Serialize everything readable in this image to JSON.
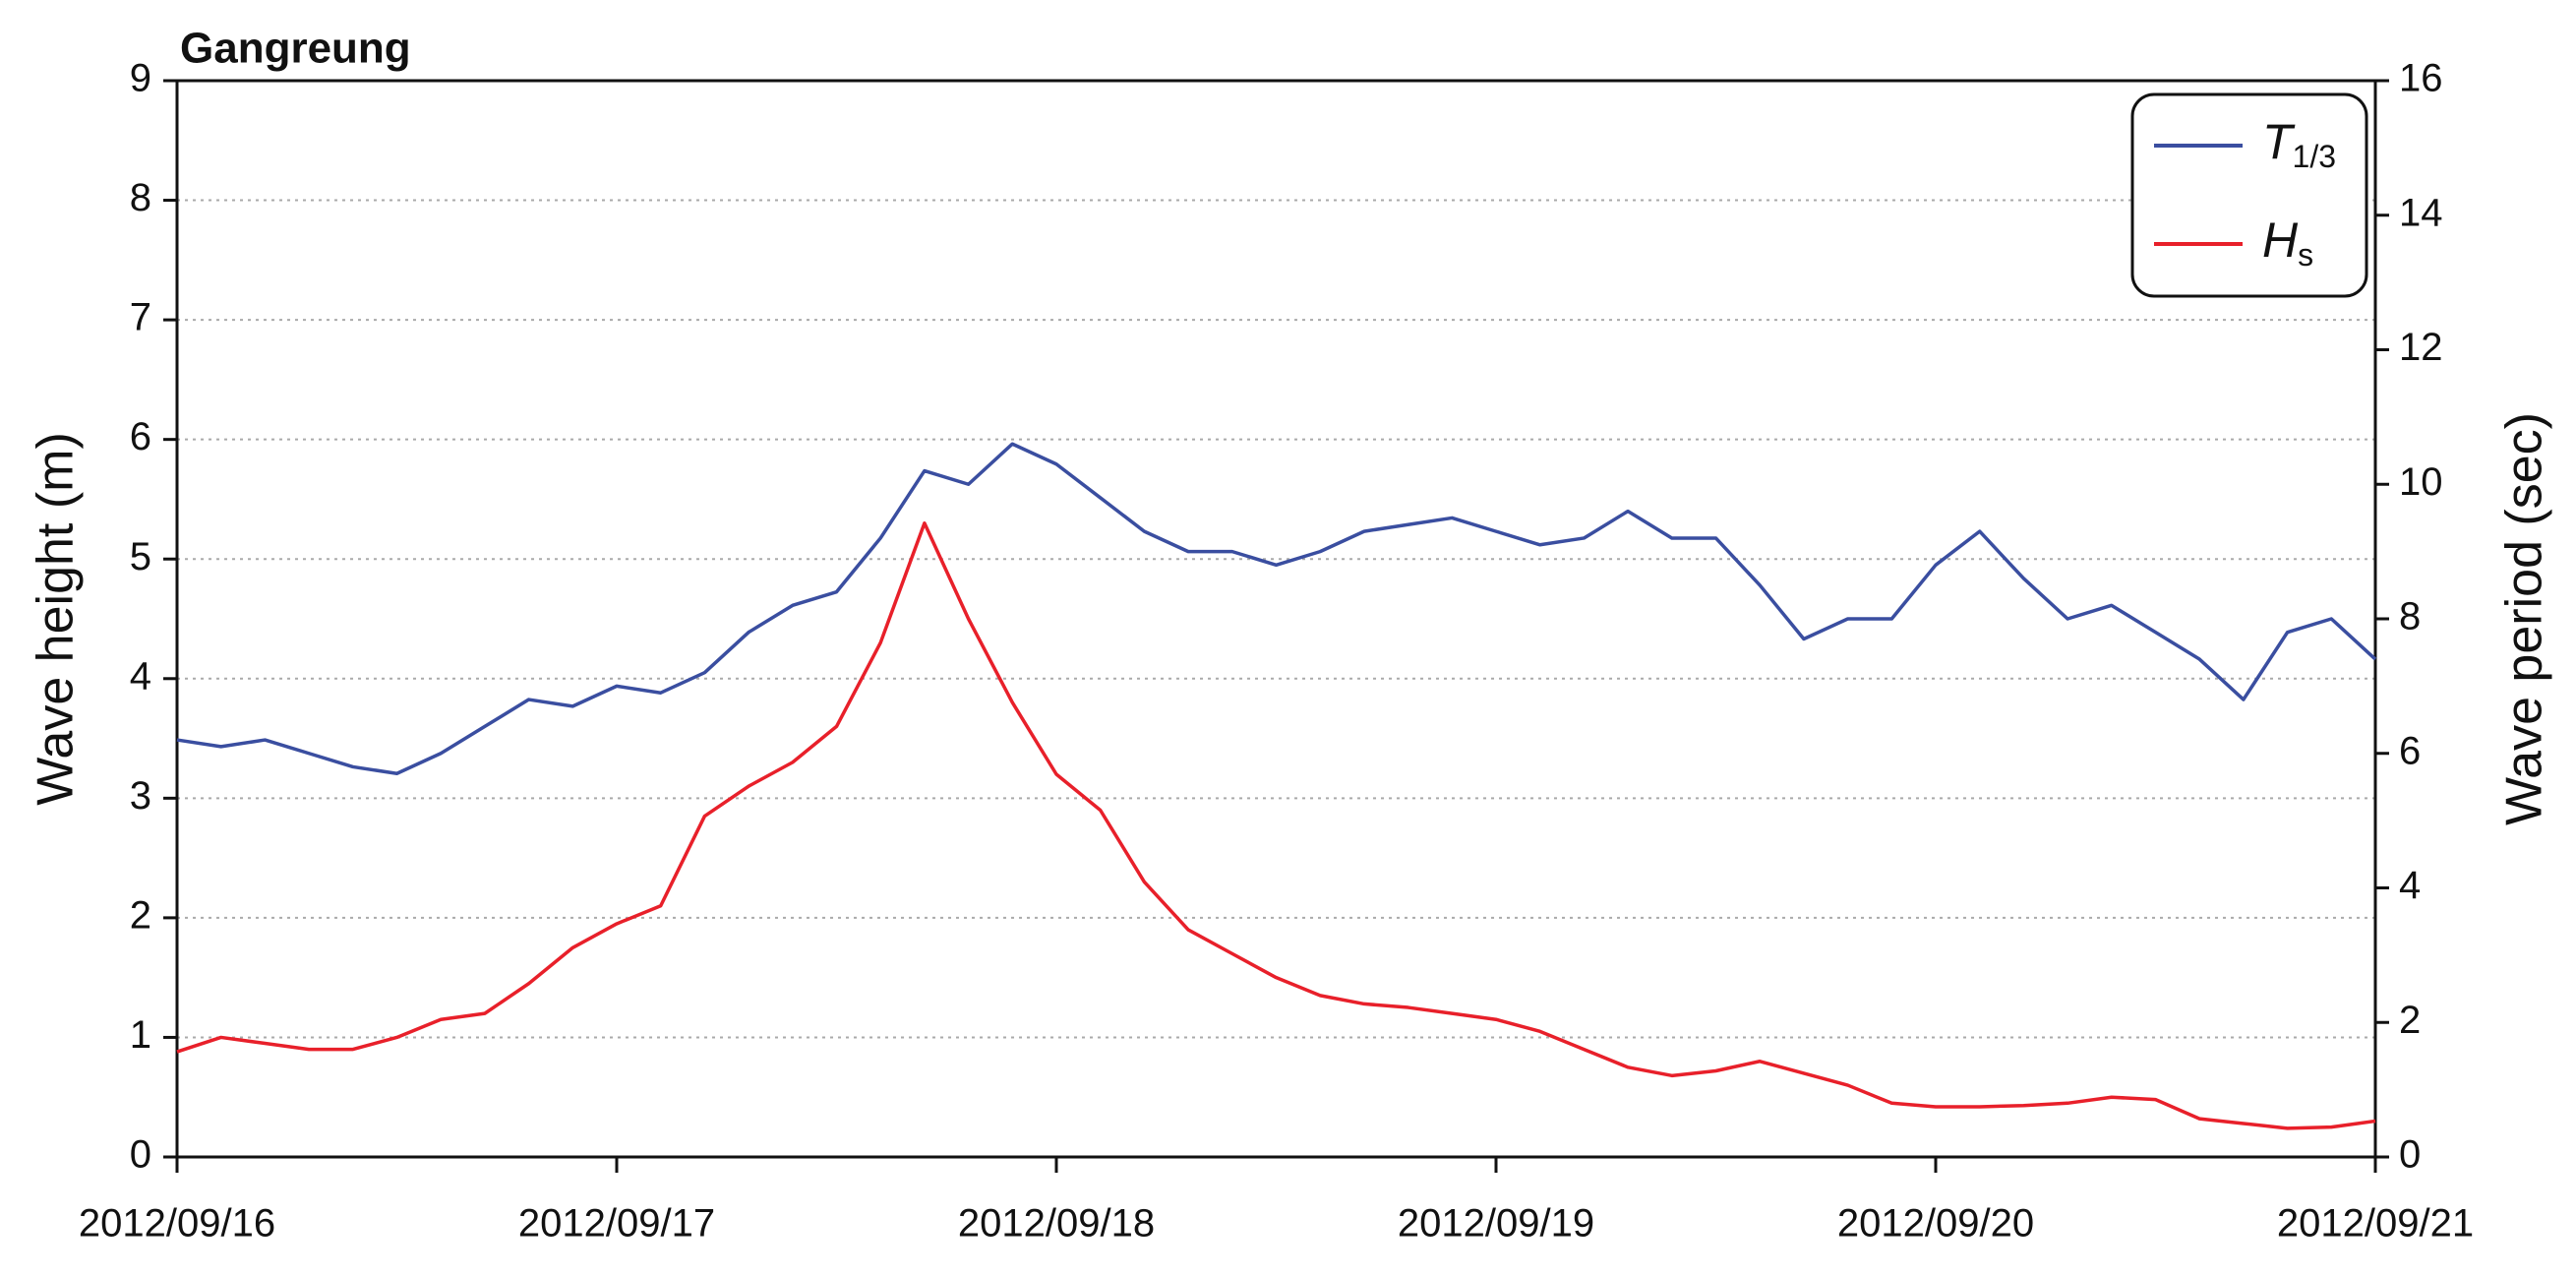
{
  "chart_data": {
    "type": "line",
    "title": "Gangreung",
    "y_label": "Wave height (m)",
    "y2_label": "Wave period (sec)",
    "x": [
      0,
      0.1,
      0.2,
      0.3,
      0.4,
      0.5,
      0.6,
      0.7,
      0.8,
      0.9,
      1.0,
      1.1,
      1.2,
      1.3,
      1.4,
      1.5,
      1.6,
      1.7,
      1.8,
      1.9,
      2.0,
      2.1,
      2.2,
      2.3,
      2.4,
      2.5,
      2.6,
      2.7,
      2.8,
      2.9,
      3.0,
      3.1,
      3.2,
      3.3,
      3.4,
      3.5,
      3.6,
      3.7,
      3.8,
      3.9,
      4.0,
      4.1,
      4.2,
      4.3,
      4.4,
      4.5,
      4.6,
      4.7,
      4.8,
      4.9,
      5.0
    ],
    "series": [
      {
        "name": "T1/3",
        "color": "#3a4ea0",
        "axis": "y2",
        "values": [
          6.2,
          6.1,
          6.2,
          6.0,
          5.8,
          5.7,
          6.0,
          6.4,
          6.8,
          6.7,
          7.0,
          6.9,
          7.2,
          7.8,
          8.2,
          8.4,
          9.2,
          10.2,
          10.0,
          10.6,
          10.3,
          9.8,
          9.3,
          9.0,
          9.0,
          8.8,
          9.0,
          9.3,
          9.4,
          9.5,
          9.3,
          9.1,
          9.2,
          9.6,
          9.2,
          9.2,
          8.5,
          7.7,
          8.0,
          8.0,
          8.8,
          9.3,
          8.6,
          8.0,
          8.2,
          7.8,
          7.4,
          6.8,
          7.8,
          8.0,
          7.4
        ]
      },
      {
        "name": "Hs",
        "color": "#e8202a",
        "values": [
          0.88,
          1.0,
          0.95,
          0.9,
          0.9,
          1.0,
          1.15,
          1.2,
          1.45,
          1.75,
          1.95,
          2.1,
          2.85,
          3.1,
          3.3,
          3.6,
          4.3,
          5.3,
          4.5,
          3.8,
          3.2,
          2.9,
          2.3,
          1.9,
          1.7,
          1.5,
          1.35,
          1.28,
          1.25,
          1.2,
          1.15,
          1.05,
          0.9,
          0.75,
          0.68,
          0.72,
          0.8,
          0.7,
          0.6,
          0.45,
          0.42,
          0.42,
          0.43,
          0.45,
          0.5,
          0.48,
          0.32,
          0.28,
          0.24,
          0.25,
          0.3
        ]
      }
    ],
    "xlim": [
      0,
      5
    ],
    "xticks": [
      {
        "value": 0,
        "label": "2012/09/16"
      },
      {
        "value": 1,
        "label": "2012/09/17"
      },
      {
        "value": 2,
        "label": "2012/09/18"
      },
      {
        "value": 3,
        "label": "2012/09/19"
      },
      {
        "value": 4,
        "label": "2012/09/20"
      },
      {
        "value": 5,
        "label": "2012/09/21"
      }
    ],
    "ylim": [
      0,
      9
    ],
    "yticks": [
      0,
      1,
      2,
      3,
      4,
      5,
      6,
      7,
      8,
      9
    ],
    "y2lim": [
      0,
      16
    ],
    "y2ticks": [
      0,
      2,
      4,
      6,
      8,
      10,
      12,
      14,
      16
    ],
    "grid": true,
    "legend": "upper right"
  }
}
